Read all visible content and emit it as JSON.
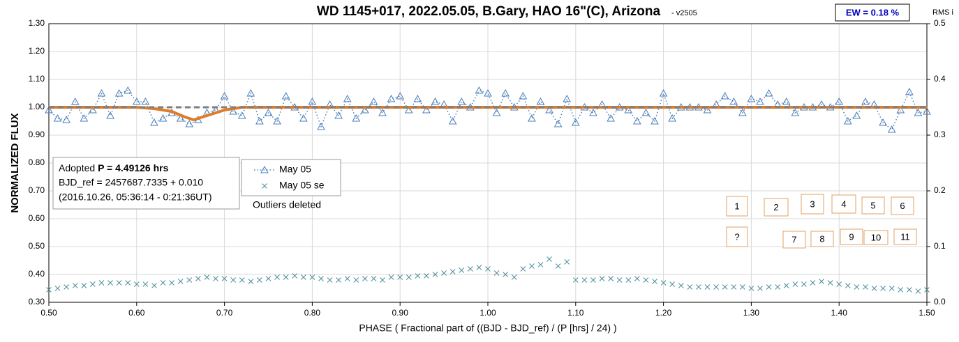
{
  "chart_data": {
    "type": "scatter",
    "title": "WD 1145+017, 2022.05.05, B.Gary, HAO 16\"(C), Arizona",
    "subtitle": "- v2505",
    "badge": "EW = 0.18 %",
    "xlabel": "PHASE ( Fractional part of ((BJD - BJD_ref) / (P [hrs] / 24) )",
    "ylabel": "NORMALIZED FLUX",
    "y2label": "RMS i",
    "xlim": [
      0.5,
      1.5
    ],
    "ylim": [
      0.3,
      1.3
    ],
    "y2lim": [
      0,
      0.5
    ],
    "grid": true,
    "xticks": [
      {
        "value": 0.5,
        "label": "0.50"
      },
      {
        "value": 0.6,
        "label": "0.60"
      },
      {
        "value": 0.7,
        "label": "0.70"
      },
      {
        "value": 0.8,
        "label": "0.80"
      },
      {
        "value": 0.9,
        "label": "0.90"
      },
      {
        "value": 1.0,
        "label": "1.00"
      },
      {
        "value": 1.1,
        "label": "1.10"
      },
      {
        "value": 1.2,
        "label": "1.20"
      },
      {
        "value": 1.3,
        "label": "1.30"
      },
      {
        "value": 1.4,
        "label": "1.40"
      },
      {
        "value": 1.5,
        "label": "1.50"
      }
    ],
    "yticks": [
      {
        "value": 0.3,
        "label": "0.30"
      },
      {
        "value": 0.4,
        "label": "0.40"
      },
      {
        "value": 0.5,
        "label": "0.50"
      },
      {
        "value": 0.6,
        "label": "0.60"
      },
      {
        "value": 0.7,
        "label": "0.70"
      },
      {
        "value": 0.8,
        "label": "0.80"
      },
      {
        "value": 0.9,
        "label": "0.90"
      },
      {
        "value": 1.0,
        "label": "1.00"
      },
      {
        "value": 1.1,
        "label": "1.10"
      },
      {
        "value": 1.2,
        "label": "1.20"
      },
      {
        "value": 1.3,
        "label": "1.30"
      }
    ],
    "y2ticks": [
      {
        "value": 0,
        "label": "0.0"
      },
      0.1,
      0.2,
      0.3,
      0.4,
      0.5
    ],
    "series": [
      {
        "name": "May 05",
        "color": "#4a7ebb",
        "marker": "triangle",
        "line": "dotted",
        "x": [
          0.5,
          0.51,
          0.52,
          0.53,
          0.54,
          0.55,
          0.56,
          0.57,
          0.58,
          0.59,
          0.6,
          0.61,
          0.62,
          0.63,
          0.64,
          0.65,
          0.66,
          0.67,
          0.68,
          0.69,
          0.7,
          0.71,
          0.72,
          0.73,
          0.74,
          0.75,
          0.76,
          0.77,
          0.78,
          0.79,
          0.8,
          0.81,
          0.82,
          0.83,
          0.84,
          0.85,
          0.86,
          0.87,
          0.88,
          0.89,
          0.9,
          0.91,
          0.92,
          0.93,
          0.94,
          0.95,
          0.96,
          0.97,
          0.98,
          0.99,
          1.0,
          1.01,
          1.02,
          1.03,
          1.04,
          1.05,
          1.06,
          1.07,
          1.08,
          1.09,
          1.1,
          1.11,
          1.12,
          1.13,
          1.14,
          1.15,
          1.16,
          1.17,
          1.18,
          1.19,
          1.2,
          1.21,
          1.22,
          1.23,
          1.24,
          1.25,
          1.26,
          1.27,
          1.28,
          1.29,
          1.3,
          1.31,
          1.32,
          1.33,
          1.34,
          1.35,
          1.36,
          1.37,
          1.38,
          1.39,
          1.4,
          1.41,
          1.42,
          1.43,
          1.44,
          1.45,
          1.46,
          1.47,
          1.48,
          1.49,
          1.5
        ],
        "values": [
          0.99,
          0.96,
          0.955,
          1.02,
          0.96,
          0.99,
          1.05,
          0.97,
          1.05,
          1.06,
          1.02,
          1.02,
          0.945,
          0.96,
          0.98,
          0.96,
          0.94,
          0.955,
          0.98,
          0.99,
          1.04,
          0.985,
          0.97,
          1.05,
          0.95,
          0.98,
          0.95,
          1.04,
          1.0,
          0.96,
          1.02,
          0.93,
          1.01,
          0.97,
          1.03,
          0.96,
          0.99,
          1.02,
          0.98,
          1.03,
          1.04,
          0.99,
          1.03,
          0.99,
          1.02,
          1.01,
          0.95,
          1.02,
          1.0,
          1.06,
          1.05,
          0.98,
          1.05,
          1.0,
          1.04,
          0.96,
          1.02,
          0.99,
          0.94,
          1.03,
          0.945,
          1.0,
          0.98,
          1.01,
          0.96,
          1.0,
          0.99,
          0.95,
          0.98,
          0.95,
          1.05,
          0.96,
          1.0,
          1.0,
          1.0,
          0.99,
          1.01,
          1.04,
          1.02,
          0.98,
          1.03,
          1.02,
          1.05,
          1.01,
          1.02,
          0.98,
          1.0,
          1.0,
          1.01,
          1.0,
          1.02,
          0.95,
          0.97,
          1.02,
          1.01,
          0.945,
          0.92,
          0.99,
          1.055,
          0.98,
          0.985
        ]
      },
      {
        "name": "May 05 se",
        "color": "#4a8c9c",
        "marker": "x",
        "line": "none",
        "x": [
          0.5,
          0.51,
          0.52,
          0.53,
          0.54,
          0.55,
          0.56,
          0.57,
          0.58,
          0.59,
          0.6,
          0.61,
          0.62,
          0.63,
          0.64,
          0.65,
          0.66,
          0.67,
          0.68,
          0.69,
          0.7,
          0.71,
          0.72,
          0.73,
          0.74,
          0.75,
          0.76,
          0.77,
          0.78,
          0.79,
          0.8,
          0.81,
          0.82,
          0.83,
          0.84,
          0.85,
          0.86,
          0.87,
          0.88,
          0.89,
          0.9,
          0.91,
          0.92,
          0.93,
          0.94,
          0.95,
          0.96,
          0.97,
          0.98,
          0.99,
          1.0,
          1.01,
          1.02,
          1.03,
          1.04,
          1.05,
          1.06,
          1.07,
          1.08,
          1.09,
          1.1,
          1.11,
          1.12,
          1.13,
          1.14,
          1.15,
          1.16,
          1.17,
          1.18,
          1.19,
          1.2,
          1.21,
          1.22,
          1.23,
          1.24,
          1.25,
          1.26,
          1.27,
          1.28,
          1.29,
          1.3,
          1.31,
          1.32,
          1.33,
          1.34,
          1.35,
          1.36,
          1.37,
          1.38,
          1.39,
          1.4,
          1.41,
          1.42,
          1.43,
          1.44,
          1.45,
          1.46,
          1.47,
          1.48,
          1.49,
          1.5
        ],
        "values": [
          0.345,
          0.35,
          0.355,
          0.36,
          0.36,
          0.365,
          0.37,
          0.37,
          0.37,
          0.37,
          0.365,
          0.365,
          0.36,
          0.37,
          0.37,
          0.375,
          0.38,
          0.385,
          0.39,
          0.385,
          0.385,
          0.38,
          0.38,
          0.375,
          0.38,
          0.385,
          0.39,
          0.39,
          0.395,
          0.39,
          0.39,
          0.385,
          0.38,
          0.38,
          0.385,
          0.38,
          0.385,
          0.385,
          0.38,
          0.39,
          0.39,
          0.39,
          0.395,
          0.395,
          0.4,
          0.405,
          0.41,
          0.415,
          0.42,
          0.425,
          0.42,
          0.405,
          0.4,
          0.39,
          0.42,
          0.43,
          0.435,
          0.455,
          0.43,
          0.445,
          0.38,
          0.38,
          0.38,
          0.385,
          0.385,
          0.38,
          0.38,
          0.385,
          0.38,
          0.375,
          0.37,
          0.365,
          0.36,
          0.355,
          0.355,
          0.355,
          0.355,
          0.355,
          0.355,
          0.355,
          0.35,
          0.35,
          0.355,
          0.355,
          0.36,
          0.365,
          0.365,
          0.37,
          0.375,
          0.37,
          0.365,
          0.36,
          0.355,
          0.355,
          0.35,
          0.35,
          0.35,
          0.345,
          0.345,
          0.34,
          0.345
        ]
      },
      {
        "color": "#e07b28",
        "marker": "none",
        "line": "solid",
        "x": [
          0.5,
          0.6,
          0.62,
          0.64,
          0.655,
          0.665,
          0.68,
          0.7,
          0.72,
          1.5
        ],
        "values": [
          1.0,
          1.0,
          0.995,
          0.985,
          0.965,
          0.955,
          0.97,
          0.99,
          1.0,
          1.0
        ]
      },
      {
        "color": "#7f7f7f",
        "marker": "none",
        "line": "dashed",
        "x": [
          0.5,
          1.5
        ],
        "values": [
          1.0,
          1.0
        ]
      }
    ],
    "info_box": {
      "lead": "Adopted",
      "period": "P = 4.49126 hrs",
      "lines": [
        "BJD_ref = 2457687.7335 + 0.010",
        "(2016.10.26, 05:36:14 - 0:21:36UT)"
      ]
    },
    "note": "Outliers deleted",
    "markers": [
      "1",
      "2",
      "3",
      "4",
      "5",
      "6",
      "?",
      "7",
      "8",
      "9",
      "10",
      "11"
    ]
  }
}
